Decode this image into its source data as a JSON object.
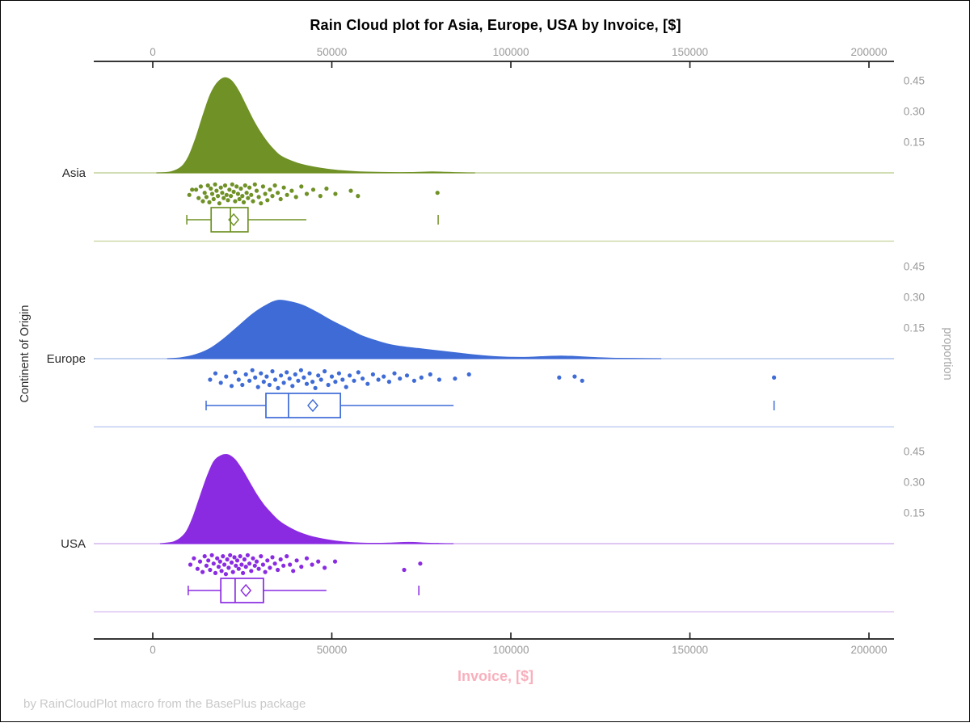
{
  "figure": {
    "title": "Rain Cloud plot for Asia, Europe, USA by Invoice, [$]",
    "x_axis_label": "Invoice, [$]",
    "y_axis_label": "Continent of Origin",
    "y2_axis_label": "proportion",
    "footer": "by RainCloudPlot macro from the BasePlus package"
  },
  "colors": {
    "title": "#000000",
    "axis_line": "#1a1a1a",
    "tick_label": "#9a9a9a",
    "x_axis_label_pink": "#f8b0bc",
    "footer_gray": "#c9c9c9",
    "y_label_black": "#2b2b2b",
    "y2_label_gray": "#a8a8a8"
  },
  "chart_data": {
    "type": "raincloud (half-violin density + jittered scatter rain + box plot with mean diamond)",
    "title": "Rain Cloud plot for Asia, Europe, USA by Invoice, [$]",
    "xlabel": "Invoice, [$]",
    "ylabel": "Continent of Origin",
    "y2label": "proportion",
    "x_ticks": [
      0,
      50000,
      100000,
      150000,
      200000
    ],
    "x_range": [
      -16500,
      207000
    ],
    "proportion_ticks": [
      0.15,
      0.3,
      0.45
    ],
    "legend": "none",
    "grid": "off",
    "groups": [
      {
        "name": "Asia",
        "color": "#6f9125",
        "light_color": "#c3d29c",
        "density": [
          [
            1000,
            0
          ],
          [
            5000,
            0.005
          ],
          [
            8000,
            0.03
          ],
          [
            10000,
            0.08
          ],
          [
            12000,
            0.17
          ],
          [
            14000,
            0.28
          ],
          [
            16000,
            0.38
          ],
          [
            18000,
            0.44
          ],
          [
            20000,
            0.465
          ],
          [
            22000,
            0.45
          ],
          [
            24000,
            0.4
          ],
          [
            26000,
            0.33
          ],
          [
            28000,
            0.26
          ],
          [
            30000,
            0.2
          ],
          [
            32000,
            0.15
          ],
          [
            34000,
            0.11
          ],
          [
            36000,
            0.08
          ],
          [
            40000,
            0.05
          ],
          [
            44000,
            0.032
          ],
          [
            48000,
            0.02
          ],
          [
            52000,
            0.012
          ],
          [
            56000,
            0.007
          ],
          [
            60000,
            0.004
          ],
          [
            66000,
            0.002
          ],
          [
            72000,
            0.002
          ],
          [
            78000,
            0.005
          ],
          [
            82000,
            0.003
          ],
          [
            86000,
            0.001
          ],
          [
            90000,
            0
          ]
        ],
        "box": {
          "whisker_low": 9500,
          "q1": 16300,
          "median": 21700,
          "q3": 26600,
          "whisker_high": 42900,
          "mean": 22600,
          "outliers": [
            79700
          ]
        },
        "points": [
          [
            10200,
            0.55
          ],
          [
            11000,
            0.3
          ],
          [
            12100,
            0.3
          ],
          [
            12800,
            0.7
          ],
          [
            13400,
            0.15
          ],
          [
            14000,
            0.85
          ],
          [
            14500,
            0.45
          ],
          [
            15000,
            0.65
          ],
          [
            15400,
            0.1
          ],
          [
            15800,
            0.9
          ],
          [
            16200,
            0.25
          ],
          [
            16600,
            0.5
          ],
          [
            17000,
            0.75
          ],
          [
            17400,
            0.05
          ],
          [
            17800,
            0.35
          ],
          [
            18200,
            0.6
          ],
          [
            18600,
            0.95
          ],
          [
            19000,
            0.2
          ],
          [
            19400,
            0.45
          ],
          [
            19800,
            0.7
          ],
          [
            20200,
            0.1
          ],
          [
            20600,
            0.55
          ],
          [
            21000,
            0.8
          ],
          [
            21400,
            0.3
          ],
          [
            21800,
            0.6
          ],
          [
            22200,
            0.05
          ],
          [
            22600,
            0.4
          ],
          [
            23000,
            0.85
          ],
          [
            23400,
            0.15
          ],
          [
            23800,
            0.5
          ],
          [
            24200,
            0.75
          ],
          [
            24600,
            0.25
          ],
          [
            25000,
            0.6
          ],
          [
            25400,
            0.9
          ],
          [
            25800,
            0.1
          ],
          [
            26200,
            0.45
          ],
          [
            26600,
            0.7
          ],
          [
            27000,
            0.2
          ],
          [
            27500,
            0.55
          ],
          [
            28000,
            0.85
          ],
          [
            28500,
            0.05
          ],
          [
            29000,
            0.35
          ],
          [
            29600,
            0.65
          ],
          [
            30200,
            0.95
          ],
          [
            30800,
            0.15
          ],
          [
            31400,
            0.5
          ],
          [
            32000,
            0.8
          ],
          [
            32700,
            0.3
          ],
          [
            33400,
            0.6
          ],
          [
            34100,
            0.1
          ],
          [
            34900,
            0.45
          ],
          [
            35700,
            0.75
          ],
          [
            36600,
            0.2
          ],
          [
            37500,
            0.55
          ],
          [
            38800,
            0.35
          ],
          [
            40000,
            0.65
          ],
          [
            41500,
            0.15
          ],
          [
            43000,
            0.5
          ],
          [
            44800,
            0.3
          ],
          [
            46800,
            0.6
          ],
          [
            48500,
            0.25
          ],
          [
            51000,
            0.5
          ],
          [
            55300,
            0.35
          ],
          [
            57300,
            0.6
          ],
          [
            79500,
            0.45
          ]
        ]
      },
      {
        "name": "Europe",
        "color": "#3e6bd6",
        "light_color": "#b3c5ee",
        "density": [
          [
            4000,
            0
          ],
          [
            8000,
            0.005
          ],
          [
            12000,
            0.02
          ],
          [
            16000,
            0.05
          ],
          [
            20000,
            0.1
          ],
          [
            24000,
            0.16
          ],
          [
            28000,
            0.22
          ],
          [
            32000,
            0.265
          ],
          [
            35000,
            0.285
          ],
          [
            38000,
            0.28
          ],
          [
            42000,
            0.26
          ],
          [
            46000,
            0.225
          ],
          [
            50000,
            0.185
          ],
          [
            54000,
            0.15
          ],
          [
            58000,
            0.115
          ],
          [
            62000,
            0.09
          ],
          [
            66000,
            0.07
          ],
          [
            70000,
            0.058
          ],
          [
            74000,
            0.05
          ],
          [
            78000,
            0.042
          ],
          [
            82000,
            0.034
          ],
          [
            86000,
            0.026
          ],
          [
            90000,
            0.018
          ],
          [
            95000,
            0.011
          ],
          [
            100000,
            0.007
          ],
          [
            105000,
            0.007
          ],
          [
            110000,
            0.011
          ],
          [
            114000,
            0.013
          ],
          [
            118000,
            0.011
          ],
          [
            122000,
            0.007
          ],
          [
            126000,
            0.004
          ],
          [
            130000,
            0.002
          ],
          [
            136000,
            0.001
          ],
          [
            142000,
            0
          ]
        ],
        "box": {
          "whisker_low": 14900,
          "q1": 31600,
          "median": 37900,
          "q3": 52400,
          "whisker_high": 84000,
          "mean": 44700,
          "outliers": [
            173500
          ]
        },
        "points": [
          [
            16000,
            0.5
          ],
          [
            17500,
            0.2
          ],
          [
            19000,
            0.65
          ],
          [
            20500,
            0.35
          ],
          [
            22000,
            0.8
          ],
          [
            23000,
            0.15
          ],
          [
            24000,
            0.5
          ],
          [
            25000,
            0.75
          ],
          [
            26000,
            0.25
          ],
          [
            27000,
            0.55
          ],
          [
            27800,
            0.05
          ],
          [
            28600,
            0.4
          ],
          [
            29400,
            0.85
          ],
          [
            30200,
            0.2
          ],
          [
            31000,
            0.6
          ],
          [
            31800,
            0.35
          ],
          [
            32600,
            0.75
          ],
          [
            33400,
            0.1
          ],
          [
            34200,
            0.5
          ],
          [
            35000,
            0.9
          ],
          [
            35800,
            0.3
          ],
          [
            36600,
            0.65
          ],
          [
            37400,
            0.15
          ],
          [
            38200,
            0.45
          ],
          [
            39000,
            0.8
          ],
          [
            39800,
            0.25
          ],
          [
            40600,
            0.55
          ],
          [
            41400,
            0.05
          ],
          [
            42200,
            0.4
          ],
          [
            43000,
            0.7
          ],
          [
            43800,
            0.2
          ],
          [
            44600,
            0.6
          ],
          [
            45400,
            0.9
          ],
          [
            46200,
            0.3
          ],
          [
            47000,
            0.5
          ],
          [
            48000,
            0.1
          ],
          [
            49000,
            0.75
          ],
          [
            50000,
            0.35
          ],
          [
            51000,
            0.6
          ],
          [
            52000,
            0.2
          ],
          [
            53000,
            0.5
          ],
          [
            54000,
            0.85
          ],
          [
            55000,
            0.3
          ],
          [
            56200,
            0.55
          ],
          [
            57400,
            0.15
          ],
          [
            58600,
            0.45
          ],
          [
            60000,
            0.7
          ],
          [
            61500,
            0.25
          ],
          [
            63000,
            0.5
          ],
          [
            64500,
            0.35
          ],
          [
            66000,
            0.6
          ],
          [
            67500,
            0.2
          ],
          [
            69000,
            0.45
          ],
          [
            71000,
            0.3
          ],
          [
            73000,
            0.55
          ],
          [
            75000,
            0.4
          ],
          [
            77500,
            0.25
          ],
          [
            80000,
            0.5
          ],
          [
            84400,
            0.45
          ],
          [
            88300,
            0.25
          ],
          [
            113500,
            0.4
          ],
          [
            117800,
            0.35
          ],
          [
            119900,
            0.55
          ],
          [
            173500,
            0.4
          ]
        ]
      },
      {
        "name": "USA",
        "color": "#8a2be2",
        "light_color": "#d6b5f0",
        "density": [
          [
            2000,
            0
          ],
          [
            6000,
            0.01
          ],
          [
            9000,
            0.05
          ],
          [
            11000,
            0.12
          ],
          [
            13000,
            0.22
          ],
          [
            15000,
            0.32
          ],
          [
            17000,
            0.4
          ],
          [
            19000,
            0.43
          ],
          [
            21000,
            0.435
          ],
          [
            23000,
            0.41
          ],
          [
            25000,
            0.36
          ],
          [
            27000,
            0.3
          ],
          [
            29000,
            0.24
          ],
          [
            31000,
            0.19
          ],
          [
            33000,
            0.15
          ],
          [
            35000,
            0.115
          ],
          [
            37000,
            0.09
          ],
          [
            40000,
            0.062
          ],
          [
            43000,
            0.042
          ],
          [
            46000,
            0.028
          ],
          [
            49000,
            0.018
          ],
          [
            52000,
            0.011
          ],
          [
            55000,
            0.006
          ],
          [
            58000,
            0.003
          ],
          [
            62000,
            0.002
          ],
          [
            66000,
            0.003
          ],
          [
            70000,
            0.006
          ],
          [
            73000,
            0.006
          ],
          [
            76000,
            0.003
          ],
          [
            80000,
            0.001
          ],
          [
            84000,
            0
          ]
        ],
        "box": {
          "whisker_low": 9900,
          "q1": 19000,
          "median": 23000,
          "q3": 30900,
          "whisker_high": 48500,
          "mean": 26000,
          "outliers": [
            74300
          ]
        },
        "points": [
          [
            10500,
            0.5
          ],
          [
            11500,
            0.2
          ],
          [
            12500,
            0.7
          ],
          [
            13200,
            0.35
          ],
          [
            13900,
            0.85
          ],
          [
            14500,
            0.1
          ],
          [
            15000,
            0.55
          ],
          [
            15500,
            0.3
          ],
          [
            16000,
            0.75
          ],
          [
            16500,
            0.05
          ],
          [
            17000,
            0.45
          ],
          [
            17500,
            0.9
          ],
          [
            18000,
            0.2
          ],
          [
            18400,
            0.6
          ],
          [
            18800,
            0.35
          ],
          [
            19200,
            0.8
          ],
          [
            19600,
            0.1
          ],
          [
            20000,
            0.5
          ],
          [
            20400,
            0.95
          ],
          [
            20800,
            0.25
          ],
          [
            21200,
            0.65
          ],
          [
            21600,
            0.05
          ],
          [
            22000,
            0.4
          ],
          [
            22400,
            0.85
          ],
          [
            22800,
            0.15
          ],
          [
            23200,
            0.55
          ],
          [
            23600,
            0.3
          ],
          [
            24000,
            0.7
          ],
          [
            24400,
            0.1
          ],
          [
            24800,
            0.5
          ],
          [
            25200,
            0.9
          ],
          [
            25600,
            0.25
          ],
          [
            26000,
            0.6
          ],
          [
            26500,
            0.05
          ],
          [
            27000,
            0.45
          ],
          [
            27500,
            0.8
          ],
          [
            28000,
            0.2
          ],
          [
            28500,
            0.55
          ],
          [
            29000,
            0.35
          ],
          [
            29600,
            0.7
          ],
          [
            30200,
            0.1
          ],
          [
            30800,
            0.5
          ],
          [
            31400,
            0.85
          ],
          [
            32000,
            0.3
          ],
          [
            32700,
            0.65
          ],
          [
            33400,
            0.15
          ],
          [
            34100,
            0.45
          ],
          [
            34900,
            0.75
          ],
          [
            35700,
            0.25
          ],
          [
            36500,
            0.55
          ],
          [
            37400,
            0.1
          ],
          [
            38300,
            0.5
          ],
          [
            39200,
            0.8
          ],
          [
            40200,
            0.3
          ],
          [
            41500,
            0.6
          ],
          [
            43000,
            0.2
          ],
          [
            44500,
            0.5
          ],
          [
            46200,
            0.35
          ],
          [
            48000,
            0.65
          ],
          [
            50900,
            0.35
          ],
          [
            70200,
            0.75
          ],
          [
            74700,
            0.45
          ]
        ]
      }
    ]
  }
}
